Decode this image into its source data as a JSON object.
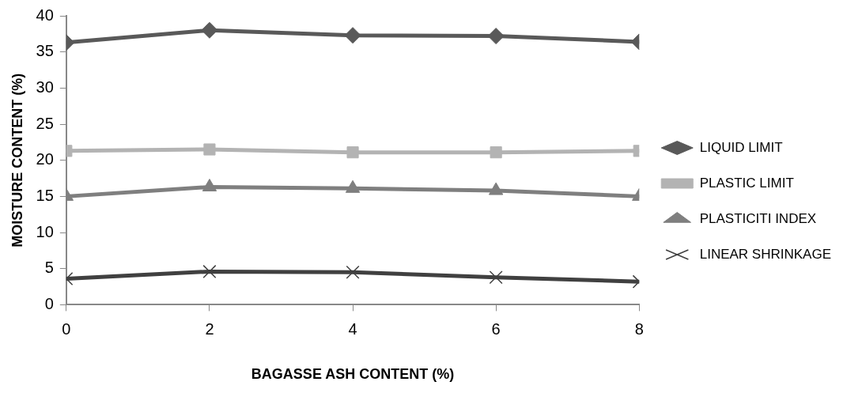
{
  "chart_data": {
    "type": "line",
    "xlabel": "BAGASSE ASH CONTENT (%)",
    "ylabel": "MOISTURE CONTENT (%)",
    "x": [
      0,
      2,
      4,
      6,
      8
    ],
    "xlim": [
      0,
      8
    ],
    "xticks": [
      0,
      2,
      4,
      6,
      8
    ],
    "ylim": [
      0,
      40
    ],
    "yticks": [
      0,
      5,
      10,
      15,
      20,
      25,
      30,
      35,
      40
    ],
    "grid": false,
    "legend": "right",
    "line_style": "solid",
    "series": [
      {
        "name": "LIQUID LIMIT",
        "color": "#595959",
        "marker": "diamond",
        "values": [
          36.3,
          38.0,
          37.3,
          37.2,
          36.4
        ]
      },
      {
        "name": "PLASTIC LIMIT",
        "color": "#b3b3b3",
        "marker": "square",
        "values": [
          21.3,
          21.5,
          21.1,
          21.1,
          21.3
        ]
      },
      {
        "name": "PLASTICITI INDEX",
        "color": "#7f7f7f",
        "marker": "triangle",
        "values": [
          15.0,
          16.3,
          16.1,
          15.8,
          15.0
        ]
      },
      {
        "name": "LINEAR SHRINKAGE",
        "color": "#404040",
        "marker": "cross",
        "values": [
          3.6,
          4.6,
          4.5,
          3.8,
          3.2
        ]
      }
    ]
  }
}
